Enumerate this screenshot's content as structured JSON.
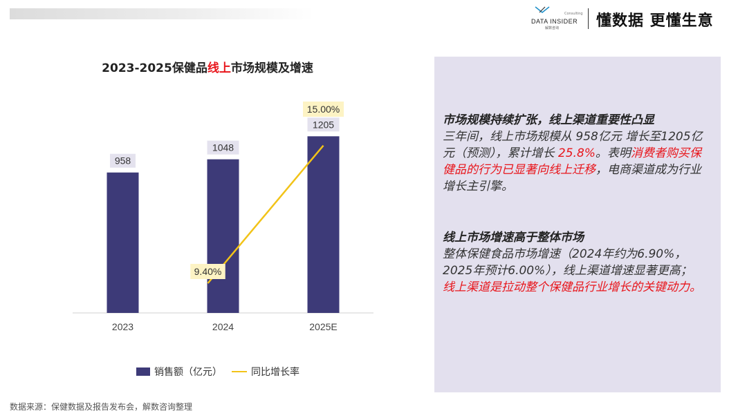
{
  "header": {
    "brand_name": "DATA INSIDER",
    "brand_sub": "解数咨询",
    "brand_consult": "Consulting",
    "slogan": "懂数据 更懂生意"
  },
  "chart_title": {
    "prefix": "2023-2025保健品",
    "highlight": "线上",
    "suffix": "市场规模及增速"
  },
  "chart_data": {
    "type": "bar",
    "categories": [
      "2023",
      "2024",
      "2025E"
    ],
    "series": [
      {
        "name": "销售额（亿元）",
        "type": "bar",
        "values": [
          958,
          1048,
          1205
        ],
        "labels": [
          "958",
          "1048",
          "1205"
        ],
        "color": "#3d3a78"
      },
      {
        "name": "同比增长率",
        "type": "line",
        "values": [
          null,
          9.4,
          15.0
        ],
        "labels": [
          "",
          "9.40%",
          "15.00%"
        ],
        "color": "#f2c318"
      }
    ],
    "ylim": [
      0,
      1500
    ],
    "grid": false,
    "legend": "bottom"
  },
  "legend": {
    "bar_label": "销售额（亿元）",
    "line_label": "同比增长率"
  },
  "source": "数据来源：保健数据及报告发布会，解数咨询整理",
  "panel": {
    "p1_head": "市场规模持续扩张，线上渠道重要性凸显",
    "p1_text1": "三年间，线上市场规模从 958亿元 增长至1205亿元（预测），累计增长 ",
    "p1_red1": "25.8%",
    "p1_text2": "。表明",
    "p1_red2": "消费者购买保健品的行为已显著向线上迁移",
    "p1_text3": "，电商渠道成为行业增长主引擎。",
    "p2_head": "线上市场增速高于整体市场",
    "p2_text": "整体保健食品市场增速（2024年约为6.90%，2025年预计6.00%），线上渠道增速显著更高；",
    "p2_red": "线上渠道是拉动整个保健品行业增长的关键动力。"
  },
  "colors": {
    "bar": "#3d3a78",
    "line": "#f2c318",
    "accent": "#e8151b",
    "panel_bg": "#e3e0ee"
  }
}
